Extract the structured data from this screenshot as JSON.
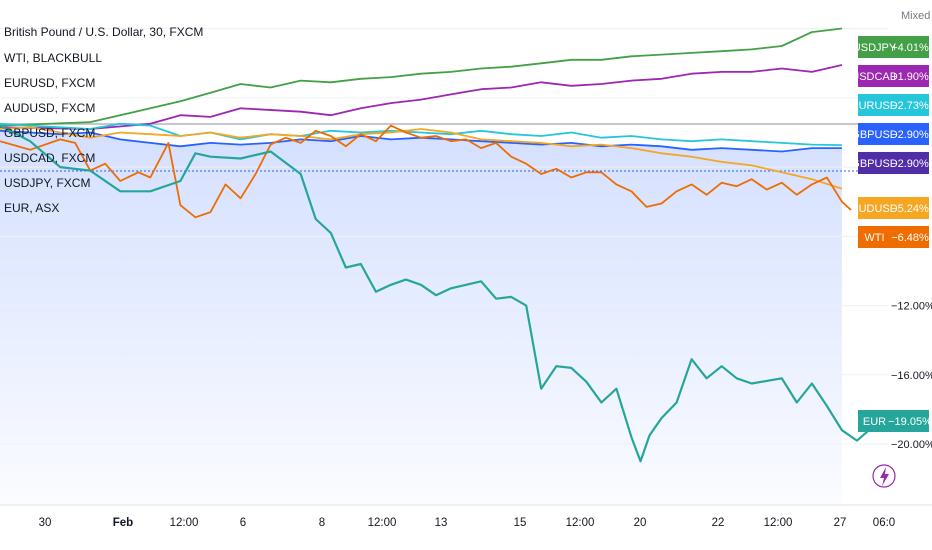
{
  "chart_data": {
    "type": "line",
    "title": "British Pound / U.S. Dollar, 30, FXCM",
    "scale_mode": "Mixed",
    "x_ticks": [
      "30",
      "Feb",
      "12:00",
      "6",
      "8",
      "12:00",
      "13",
      "15",
      "12:00",
      "20",
      "22",
      "12:00",
      "27",
      "06:0"
    ],
    "y_ticks": [
      "−12.00%",
      "−16.00%",
      "−20.00%"
    ],
    "legend": [
      "WTI, BLACKBULL",
      "EURUSD, FXCM",
      "AUDUSD, FXCM",
      "GBPUSD, FXCM",
      "USDCAD, FXCM",
      "USDJPY, FXCM",
      "EUR, ASX"
    ],
    "series": [
      {
        "name": "USDJPY",
        "color": "#43a047",
        "end_label": "+4.01%",
        "points": [
          [
            0,
            -1.6
          ],
          [
            3,
            -1.4
          ],
          [
            5,
            -0.6
          ],
          [
            6,
            -0.2
          ],
          [
            7,
            0.3
          ],
          [
            8,
            0.8
          ],
          [
            9,
            0.6
          ],
          [
            10,
            1.0
          ],
          [
            11,
            0.9
          ],
          [
            12,
            1.1
          ],
          [
            13,
            1.2
          ],
          [
            14,
            1.4
          ],
          [
            15,
            1.5
          ],
          [
            16,
            1.7
          ],
          [
            17,
            1.8
          ],
          [
            18,
            2.0
          ],
          [
            19,
            2.2
          ],
          [
            20,
            2.2
          ],
          [
            21,
            2.4
          ],
          [
            22,
            2.5
          ],
          [
            23,
            2.6
          ],
          [
            24,
            2.7
          ],
          [
            25,
            2.8
          ],
          [
            26,
            3.0
          ],
          [
            27,
            3.8
          ],
          [
            28,
            4.01
          ]
        ]
      },
      {
        "name": "USDCAD",
        "color": "#9c27b0",
        "end_label": "+1.90%",
        "points": [
          [
            0,
            -1.7
          ],
          [
            3,
            -1.8
          ],
          [
            5,
            -1.5
          ],
          [
            6,
            -1.0
          ],
          [
            7,
            -1.1
          ],
          [
            8,
            -0.6
          ],
          [
            10,
            -0.8
          ],
          [
            11,
            -1.0
          ],
          [
            12,
            -0.6
          ],
          [
            13,
            -0.3
          ],
          [
            14,
            -0.1
          ],
          [
            15,
            0.2
          ],
          [
            16,
            0.5
          ],
          [
            17,
            0.6
          ],
          [
            18,
            0.9
          ],
          [
            19,
            0.7
          ],
          [
            20,
            0.8
          ],
          [
            21,
            1.0
          ],
          [
            22,
            1.1
          ],
          [
            23,
            1.4
          ],
          [
            24,
            1.5
          ],
          [
            25,
            1.5
          ],
          [
            26,
            1.7
          ],
          [
            27,
            1.5
          ],
          [
            28,
            1.9
          ]
        ]
      },
      {
        "name": "EURUSD",
        "color": "#26c6da",
        "end_label": "−2.73%",
        "points": [
          [
            0,
            -1.5
          ],
          [
            1,
            -1.6
          ],
          [
            2,
            -1.7
          ],
          [
            3,
            -1.8
          ],
          [
            4,
            -1.5
          ],
          [
            5,
            -1.6
          ],
          [
            6,
            -2.2
          ],
          [
            7,
            -2.0
          ],
          [
            8,
            -2.4
          ],
          [
            9,
            -2.1
          ],
          [
            10,
            -2.2
          ],
          [
            11,
            -1.9
          ],
          [
            12,
            -2.0
          ],
          [
            13,
            -1.9
          ],
          [
            14,
            -2.0
          ],
          [
            15,
            -2.1
          ],
          [
            16,
            -1.9
          ],
          [
            17,
            -2.1
          ],
          [
            18,
            -2.2
          ],
          [
            19,
            -2.0
          ],
          [
            20,
            -2.3
          ],
          [
            21,
            -2.2
          ],
          [
            22,
            -2.4
          ],
          [
            23,
            -2.5
          ],
          [
            24,
            -2.4
          ],
          [
            25,
            -2.5
          ],
          [
            26,
            -2.6
          ],
          [
            27,
            -2.7
          ],
          [
            28,
            -2.73
          ]
        ]
      },
      {
        "name": "GBPUSD",
        "color": "#2962ff",
        "end_label": "−2.90%",
        "points": [
          [
            0,
            -1.9
          ],
          [
            1,
            -2.0
          ],
          [
            2,
            -2.1
          ],
          [
            3,
            -2.0
          ],
          [
            4,
            -2.4
          ],
          [
            5,
            -2.6
          ],
          [
            6,
            -2.8
          ],
          [
            7,
            -2.6
          ],
          [
            8,
            -2.7
          ],
          [
            9,
            -2.6
          ],
          [
            10,
            -2.4
          ],
          [
            11,
            -2.5
          ],
          [
            12,
            -2.2
          ],
          [
            13,
            -2.4
          ],
          [
            14,
            -2.3
          ],
          [
            15,
            -2.4
          ],
          [
            16,
            -2.5
          ],
          [
            17,
            -2.6
          ],
          [
            18,
            -2.7
          ],
          [
            19,
            -2.6
          ],
          [
            20,
            -2.8
          ],
          [
            21,
            -2.7
          ],
          [
            22,
            -2.8
          ],
          [
            23,
            -3.0
          ],
          [
            24,
            -2.9
          ],
          [
            25,
            -3.0
          ],
          [
            26,
            -3.1
          ],
          [
            27,
            -2.9
          ],
          [
            28,
            -2.9
          ]
        ]
      },
      {
        "name": "GBPUSD",
        "color": "#512da8",
        "end_label": "−2.90%",
        "points": []
      },
      {
        "name": "AUDUSD",
        "color": "#f5a623",
        "end_label": "−5.24%",
        "points": [
          [
            0,
            -1.8
          ],
          [
            1,
            -1.7
          ],
          [
            2,
            -2.0
          ],
          [
            3,
            -2.3
          ],
          [
            4,
            -2.0
          ],
          [
            5,
            -2.1
          ],
          [
            6,
            -2.2
          ],
          [
            7,
            -2.0
          ],
          [
            8,
            -2.3
          ],
          [
            9,
            -2.1
          ],
          [
            10,
            -2.2
          ],
          [
            11,
            -2.4
          ],
          [
            12,
            -2.1
          ],
          [
            13,
            -2.0
          ],
          [
            14,
            -1.8
          ],
          [
            15,
            -2.0
          ],
          [
            16,
            -2.4
          ],
          [
            17,
            -2.5
          ],
          [
            18,
            -2.6
          ],
          [
            19,
            -2.8
          ],
          [
            20,
            -2.7
          ],
          [
            21,
            -2.9
          ],
          [
            22,
            -3.2
          ],
          [
            23,
            -3.4
          ],
          [
            24,
            -3.7
          ],
          [
            25,
            -3.9
          ],
          [
            26,
            -4.3
          ],
          [
            27,
            -4.7
          ],
          [
            28,
            -5.24
          ]
        ]
      },
      {
        "name": "WTI",
        "color": "#ef6c00",
        "end_label": "−6.48%",
        "points": [
          [
            0,
            -2.5
          ],
          [
            1,
            -3.0
          ],
          [
            2,
            -2.4
          ],
          [
            2.5,
            -2.6
          ],
          [
            3,
            -4.2
          ],
          [
            3.5,
            -3.8
          ],
          [
            4,
            -4.8
          ],
          [
            4.6,
            -4.3
          ],
          [
            5,
            -4.6
          ],
          [
            5.6,
            -2.6
          ],
          [
            6,
            -6.2
          ],
          [
            6.5,
            -6.9
          ],
          [
            7,
            -6.6
          ],
          [
            7.5,
            -5.0
          ],
          [
            8,
            -5.8
          ],
          [
            8.5,
            -4.4
          ],
          [
            9,
            -2.7
          ],
          [
            9.5,
            -2.3
          ],
          [
            10,
            -2.6
          ],
          [
            10.5,
            -1.9
          ],
          [
            11,
            -2.2
          ],
          [
            11.5,
            -2.8
          ],
          [
            12,
            -2.1
          ],
          [
            12.5,
            -2.5
          ],
          [
            13,
            -1.6
          ],
          [
            13.5,
            -2.0
          ],
          [
            14,
            -2.3
          ],
          [
            14.5,
            -2.2
          ],
          [
            15,
            -2.5
          ],
          [
            15.5,
            -2.4
          ],
          [
            16,
            -2.9
          ],
          [
            16.5,
            -2.6
          ],
          [
            17,
            -3.4
          ],
          [
            17.5,
            -3.8
          ],
          [
            18,
            -4.4
          ],
          [
            18.5,
            -4.1
          ],
          [
            19,
            -4.6
          ],
          [
            19.5,
            -4.3
          ],
          [
            20,
            -4.3
          ],
          [
            20.5,
            -5.0
          ],
          [
            21,
            -5.4
          ],
          [
            21.5,
            -6.3
          ],
          [
            22,
            -6.1
          ],
          [
            22.5,
            -5.4
          ],
          [
            23,
            -5.0
          ],
          [
            23.5,
            -5.6
          ],
          [
            24,
            -4.9
          ],
          [
            24.5,
            -5.1
          ],
          [
            25,
            -4.7
          ],
          [
            25.5,
            -5.3
          ],
          [
            26,
            -4.9
          ],
          [
            26.5,
            -5.6
          ],
          [
            27,
            -5.0
          ],
          [
            27.5,
            -4.6
          ],
          [
            28,
            -6.0
          ],
          [
            28.3,
            -6.48
          ]
        ]
      },
      {
        "name": "EUR",
        "color": "#26a69a",
        "end_label": "−19.05%",
        "points": [
          [
            0,
            -1.6
          ],
          [
            1,
            -2.5
          ],
          [
            2,
            -4.0
          ],
          [
            3,
            -4.2
          ],
          [
            4,
            -5.4
          ],
          [
            5,
            -5.4
          ],
          [
            6,
            -4.8
          ],
          [
            6.5,
            -3.2
          ],
          [
            7,
            -3.4
          ],
          [
            8,
            -3.5
          ],
          [
            9,
            -3.1
          ],
          [
            10,
            -4.4
          ],
          [
            10.5,
            -7.0
          ],
          [
            11,
            -7.8
          ],
          [
            11.5,
            -9.8
          ],
          [
            12,
            -9.6
          ],
          [
            12.5,
            -11.2
          ],
          [
            13,
            -10.8
          ],
          [
            13.5,
            -10.5
          ],
          [
            14,
            -10.8
          ],
          [
            14.5,
            -11.4
          ],
          [
            15,
            -11.0
          ],
          [
            16,
            -10.6
          ],
          [
            16.5,
            -11.6
          ],
          [
            17,
            -11.5
          ],
          [
            17.5,
            -12.0
          ],
          [
            18,
            -16.8
          ],
          [
            18.5,
            -15.5
          ],
          [
            19,
            -15.6
          ],
          [
            19.5,
            -16.4
          ],
          [
            20,
            -17.6
          ],
          [
            20.5,
            -16.8
          ],
          [
            21,
            -19.6
          ],
          [
            21.3,
            -21.0
          ],
          [
            21.6,
            -19.5
          ],
          [
            22,
            -18.5
          ],
          [
            22.5,
            -17.6
          ],
          [
            23,
            -15.1
          ],
          [
            23.5,
            -16.2
          ],
          [
            24,
            -15.5
          ],
          [
            24.5,
            -16.2
          ],
          [
            25,
            -16.5
          ],
          [
            26,
            -16.2
          ],
          [
            26.5,
            -17.6
          ],
          [
            27,
            -16.5
          ],
          [
            27.5,
            -17.8
          ],
          [
            28,
            -19.2
          ],
          [
            28.5,
            -19.8
          ],
          [
            29,
            -19.05
          ]
        ]
      }
    ],
    "axes": {
      "x_range": [
        0,
        29
      ],
      "y_range": [
        -21.5,
        4.5
      ],
      "log_scale": false,
      "grid": true
    }
  },
  "side_icon": "lightning-icon"
}
